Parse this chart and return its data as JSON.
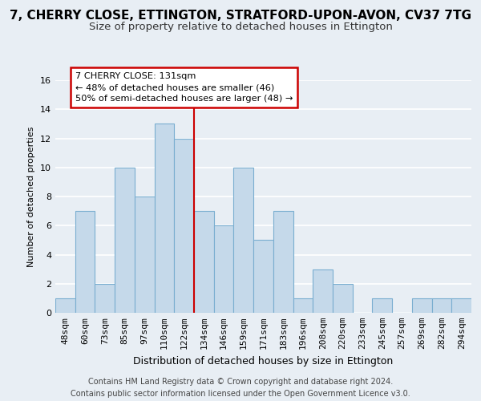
{
  "title": "7, CHERRY CLOSE, ETTINGTON, STRATFORD-UPON-AVON, CV37 7TG",
  "subtitle": "Size of property relative to detached houses in Ettington",
  "xlabel": "Distribution of detached houses by size in Ettington",
  "ylabel": "Number of detached properties",
  "footer_lines": [
    "Contains HM Land Registry data © Crown copyright and database right 2024.",
    "Contains public sector information licensed under the Open Government Licence v3.0."
  ],
  "bin_labels": [
    "48sqm",
    "60sqm",
    "73sqm",
    "85sqm",
    "97sqm",
    "110sqm",
    "122sqm",
    "134sqm",
    "146sqm",
    "159sqm",
    "171sqm",
    "183sqm",
    "196sqm",
    "208sqm",
    "220sqm",
    "233sqm",
    "245sqm",
    "257sqm",
    "269sqm",
    "282sqm",
    "294sqm"
  ],
  "bar_heights": [
    1,
    7,
    2,
    10,
    8,
    13,
    12,
    7,
    6,
    10,
    5,
    7,
    1,
    3,
    2,
    0,
    1,
    0,
    1,
    1,
    1
  ],
  "bar_color": "#c5d9ea",
  "bar_edge_color": "#7aaed0",
  "property_line_index": 6.5,
  "property_line_label": "7 CHERRY CLOSE: 131sqm",
  "annotation_line1": "← 48% of detached houses are smaller (46)",
  "annotation_line2": "50% of semi-detached houses are larger (48) →",
  "annotation_box_facecolor": "#ffffff",
  "annotation_box_edgecolor": "#cc0000",
  "property_line_color": "#cc0000",
  "ylim": [
    0,
    16
  ],
  "yticks": [
    0,
    2,
    4,
    6,
    8,
    10,
    12,
    14,
    16
  ],
  "background_color": "#e8eef4",
  "grid_color": "#ffffff",
  "title_fontsize": 11,
  "subtitle_fontsize": 9.5,
  "bar_fontsize": 8,
  "ylabel_fontsize": 8,
  "xlabel_fontsize": 9,
  "footer_fontsize": 7
}
